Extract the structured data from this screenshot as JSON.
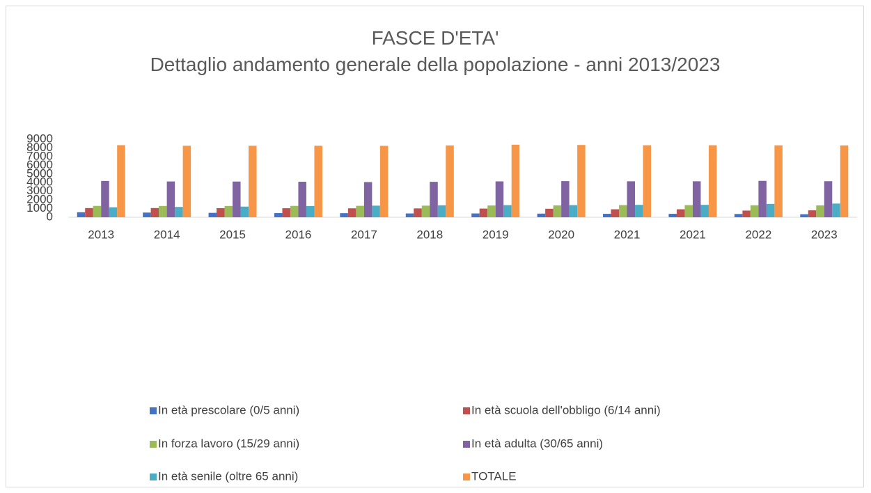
{
  "chart_data": {
    "type": "bar",
    "title": "FASCE D'ETA'",
    "subtitle": "Dettaglio andamento generale della popolazione - anni 2013/2023",
    "categories": [
      "2013",
      "2014",
      "2015",
      "2016",
      "2017",
      "2018",
      "2019",
      "2020",
      "2021",
      "2021",
      "2022",
      "2023"
    ],
    "series": [
      {
        "name": "In età prescolare (0/5 anni)",
        "color": "#4472c4",
        "values": [
          580,
          540,
          510,
          480,
          470,
          440,
          440,
          420,
          400,
          400,
          380,
          350
        ]
      },
      {
        "name": "In età scuola dell'obbligo (6/14 anni)",
        "color": "#c0504d",
        "values": [
          1060,
          1060,
          1050,
          1040,
          1030,
          1020,
          1000,
          980,
          920,
          920,
          770,
          800
        ]
      },
      {
        "name": "In forza lavoro (15/29 anni)",
        "color": "#9bbb59",
        "values": [
          1310,
          1300,
          1300,
          1310,
          1320,
          1340,
          1360,
          1370,
          1400,
          1400,
          1380,
          1370
        ]
      },
      {
        "name": "In età adulta (30/65 anni)",
        "color": "#8064a2",
        "values": [
          4190,
          4130,
          4120,
          4100,
          4060,
          4090,
          4140,
          4170,
          4150,
          4150,
          4200,
          4160
        ]
      },
      {
        "name": "In età senile (oltre 65 anni)",
        "color": "#4bacc6",
        "values": [
          1150,
          1190,
          1230,
          1290,
          1340,
          1380,
          1400,
          1400,
          1430,
          1430,
          1540,
          1580
        ]
      },
      {
        "name": "TOTALE",
        "color": "#f79646",
        "values": [
          8320,
          8250,
          8250,
          8250,
          8240,
          8290,
          8370,
          8340,
          8310,
          8310,
          8300,
          8290
        ]
      }
    ],
    "ylim": [
      0,
      9000
    ],
    "yticks": [
      0,
      1000,
      2000,
      3000,
      4000,
      5000,
      6000,
      7000,
      8000,
      9000
    ],
    "grid": false,
    "legend": "bottom"
  }
}
